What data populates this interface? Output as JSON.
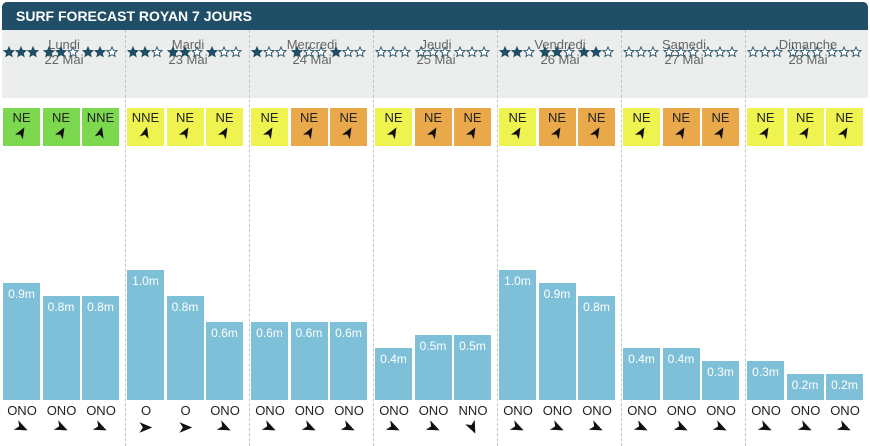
{
  "title": "SURF FORECAST ROYAN 7 JOURS",
  "days": [
    {
      "name": "Lundi",
      "date": "22 Mai"
    },
    {
      "name": "Mardi",
      "date": "23 Mai"
    },
    {
      "name": "Mercredi",
      "date": "24 Mai"
    },
    {
      "name": "Jeudi",
      "date": "25 Mai"
    },
    {
      "name": "Vendredi",
      "date": "26 Mai"
    },
    {
      "name": "Samedi",
      "date": "27 Mai"
    },
    {
      "name": "Dimanche",
      "date": "28 Mai"
    }
  ],
  "colors": {
    "header_bg": "#1f4e66",
    "bar": "#7fc0d9",
    "star": "#1f4e66",
    "wind_green": "#7cd84e",
    "wind_yellow": "#eef34f",
    "wind_orange": "#e9a84a"
  },
  "chart_data": {
    "type": "bar",
    "unit": "m",
    "ylim": [
      0,
      1.2
    ],
    "slots": [
      {
        "day": 0,
        "height": 0.9,
        "label": "0.9m",
        "stars": 3,
        "wind_dir": "NE",
        "wind_color": "green",
        "wind_deg": 30,
        "swell_dir": "ONO",
        "swell_deg": 115
      },
      {
        "day": 0,
        "height": 0.8,
        "label": "0.8m",
        "stars": 2,
        "wind_dir": "NE",
        "wind_color": "green",
        "wind_deg": 30,
        "swell_dir": "ONO",
        "swell_deg": 115
      },
      {
        "day": 0,
        "height": 0.8,
        "label": "0.8m",
        "stars": 2,
        "wind_dir": "NNE",
        "wind_color": "green",
        "wind_deg": 15,
        "swell_dir": "ONO",
        "swell_deg": 115
      },
      {
        "day": 1,
        "height": 1.0,
        "label": "1.0m",
        "stars": 2,
        "wind_dir": "NNE",
        "wind_color": "yellow",
        "wind_deg": 15,
        "swell_dir": "O",
        "swell_deg": 90
      },
      {
        "day": 1,
        "height": 0.8,
        "label": "0.8m",
        "stars": 2,
        "wind_dir": "NE",
        "wind_color": "yellow",
        "wind_deg": 30,
        "swell_dir": "O",
        "swell_deg": 90
      },
      {
        "day": 1,
        "height": 0.6,
        "label": "0.6m",
        "stars": 1,
        "wind_dir": "NE",
        "wind_color": "yellow",
        "wind_deg": 30,
        "swell_dir": "ONO",
        "swell_deg": 115
      },
      {
        "day": 2,
        "height": 0.6,
        "label": "0.6m",
        "stars": 1,
        "wind_dir": "NE",
        "wind_color": "yellow",
        "wind_deg": 30,
        "swell_dir": "ONO",
        "swell_deg": 115
      },
      {
        "day": 2,
        "height": 0.6,
        "label": "0.6m",
        "stars": 1,
        "wind_dir": "NE",
        "wind_color": "orange",
        "wind_deg": 30,
        "swell_dir": "ONO",
        "swell_deg": 115
      },
      {
        "day": 2,
        "height": 0.6,
        "label": "0.6m",
        "stars": 1,
        "wind_dir": "NE",
        "wind_color": "orange",
        "wind_deg": 30,
        "swell_dir": "ONO",
        "swell_deg": 115
      },
      {
        "day": 3,
        "height": 0.4,
        "label": "0.4m",
        "stars": 0,
        "wind_dir": "NE",
        "wind_color": "yellow",
        "wind_deg": 30,
        "swell_dir": "ONO",
        "swell_deg": 115
      },
      {
        "day": 3,
        "height": 0.5,
        "label": "0.5m",
        "stars": 0,
        "wind_dir": "NE",
        "wind_color": "orange",
        "wind_deg": 30,
        "swell_dir": "ONO",
        "swell_deg": 115
      },
      {
        "day": 3,
        "height": 0.5,
        "label": "0.5m",
        "stars": 0,
        "wind_dir": "NE",
        "wind_color": "orange",
        "wind_deg": 30,
        "swell_dir": "NNO",
        "swell_deg": 155
      },
      {
        "day": 4,
        "height": 1.0,
        "label": "1.0m",
        "stars": 2,
        "wind_dir": "NE",
        "wind_color": "yellow",
        "wind_deg": 30,
        "swell_dir": "ONO",
        "swell_deg": 115
      },
      {
        "day": 4,
        "height": 0.9,
        "label": "0.9m",
        "stars": 2,
        "wind_dir": "NE",
        "wind_color": "orange",
        "wind_deg": 30,
        "swell_dir": "ONO",
        "swell_deg": 115
      },
      {
        "day": 4,
        "height": 0.8,
        "label": "0.8m",
        "stars": 2,
        "wind_dir": "NE",
        "wind_color": "orange",
        "wind_deg": 30,
        "swell_dir": "ONO",
        "swell_deg": 115
      },
      {
        "day": 5,
        "height": 0.4,
        "label": "0.4m",
        "stars": 0,
        "wind_dir": "NE",
        "wind_color": "yellow",
        "wind_deg": 30,
        "swell_dir": "ONO",
        "swell_deg": 115
      },
      {
        "day": 5,
        "height": 0.4,
        "label": "0.4m",
        "stars": 0,
        "wind_dir": "NE",
        "wind_color": "orange",
        "wind_deg": 30,
        "swell_dir": "ONO",
        "swell_deg": 115
      },
      {
        "day": 5,
        "height": 0.3,
        "label": "0.3m",
        "stars": 0,
        "wind_dir": "NE",
        "wind_color": "orange",
        "wind_deg": 30,
        "swell_dir": "ONO",
        "swell_deg": 115
      },
      {
        "day": 6,
        "height": 0.3,
        "label": "0.3m",
        "stars": 0,
        "wind_dir": "NE",
        "wind_color": "yellow",
        "wind_deg": 30,
        "swell_dir": "ONO",
        "swell_deg": 115
      },
      {
        "day": 6,
        "height": 0.2,
        "label": "0.2m",
        "stars": 0,
        "wind_dir": "NE",
        "wind_color": "yellow",
        "wind_deg": 30,
        "swell_dir": "ONO",
        "swell_deg": 115
      },
      {
        "day": 6,
        "height": 0.2,
        "label": "0.2m",
        "stars": 0,
        "wind_dir": "NE",
        "wind_color": "yellow",
        "wind_deg": 30,
        "swell_dir": "ONO",
        "swell_deg": 115
      }
    ]
  }
}
